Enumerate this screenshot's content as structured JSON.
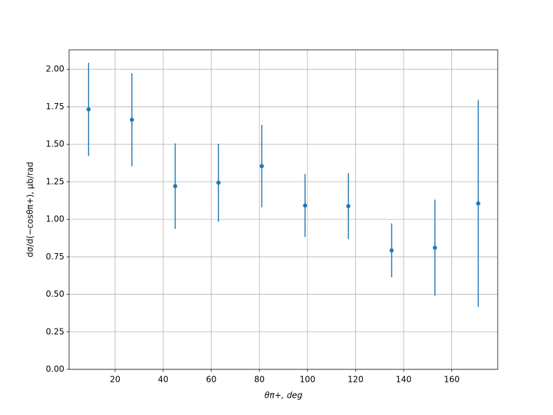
{
  "chart_data": {
    "type": "errorbar",
    "x_label": "θπ+, deg",
    "y_label": "dσ/d(−cosθπ+), μb/rad",
    "x": [
      9,
      27,
      45,
      63,
      81,
      99,
      117,
      135,
      153,
      171
    ],
    "values": [
      1.733,
      1.664,
      1.221,
      1.244,
      1.355,
      1.092,
      1.088,
      0.793,
      0.811,
      1.106
    ],
    "errors": [
      0.31,
      0.31,
      0.285,
      0.26,
      0.275,
      0.21,
      0.22,
      0.18,
      0.32,
      0.69
    ],
    "color": "#1f77b4",
    "xlim": [
      0.9,
      179.1
    ],
    "ylim": [
      0,
      2.13
    ],
    "xticks": [
      20,
      40,
      60,
      80,
      100,
      120,
      140,
      160
    ],
    "yticks": [
      {
        "value": 0,
        "label": "0.00"
      },
      {
        "value": 0.25,
        "label": "0.25"
      },
      {
        "value": 0.5,
        "label": "0.50"
      },
      {
        "value": 0.75,
        "label": "0.75"
      },
      {
        "value": 1,
        "label": "1.00"
      },
      {
        "value": 1.25,
        "label": "1.25"
      },
      {
        "value": 1.5,
        "label": "1.50"
      },
      {
        "value": 1.75,
        "label": "1.75"
      },
      {
        "value": 2,
        "label": "2.00"
      }
    ],
    "grid": true
  }
}
